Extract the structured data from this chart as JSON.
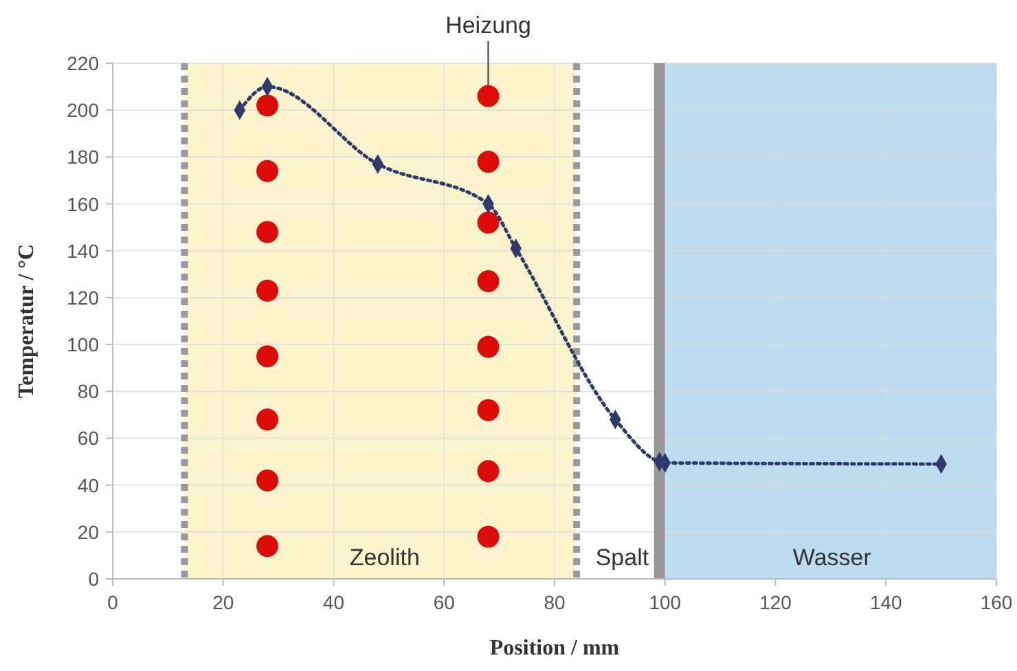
{
  "chart_data": {
    "type": "line",
    "xlabel": "Position / mm",
    "ylabel": "Temperatur / °C",
    "xlim": [
      0,
      160
    ],
    "ylim": [
      0,
      220
    ],
    "xticks": [
      0,
      20,
      40,
      60,
      80,
      100,
      120,
      140,
      160
    ],
    "yticks": [
      0,
      20,
      40,
      60,
      80,
      100,
      120,
      140,
      160,
      180,
      200,
      220
    ],
    "grid": true,
    "bands": [
      {
        "axis": "x",
        "from": 13,
        "to": 84,
        "label": "Zeolith",
        "color": "#fbf3cc"
      },
      {
        "axis": "x",
        "from": 84,
        "to": 99,
        "label": "Spalt",
        "color": "#ffffff"
      },
      {
        "axis": "x",
        "from": 99,
        "to": 160,
        "label": "Wasser",
        "color": "#bedcf0"
      }
    ],
    "ref_lines": [
      {
        "axis": "x",
        "value": 13,
        "color": "#999999",
        "line_style": "dashed"
      },
      {
        "axis": "x",
        "value": 84,
        "color": "#999999",
        "line_style": "dashed"
      },
      {
        "axis": "x",
        "value": 99,
        "color": "#999999",
        "line_style": "solid"
      }
    ],
    "annotations": [
      {
        "text": "Heizung",
        "x": 68,
        "y": 206
      }
    ],
    "series": [
      {
        "type": "scatter",
        "marker": "circle",
        "color": "#dd0a0a",
        "x": [
          28,
          28,
          28,
          28,
          28,
          28,
          28,
          28
        ],
        "values": [
          202,
          174,
          148,
          123,
          95,
          68,
          42,
          14
        ]
      },
      {
        "type": "scatter",
        "marker": "circle",
        "color": "#dd0a0a",
        "x": [
          68,
          68,
          68,
          68,
          68,
          68,
          68,
          68
        ],
        "values": [
          206,
          178,
          152,
          127,
          99,
          72,
          46,
          18
        ]
      },
      {
        "marker": "diamond",
        "line_style": "dotted",
        "color": "#2e3a6e",
        "x": [
          23,
          28,
          48,
          68,
          73,
          91,
          99,
          100,
          150
        ],
        "values": [
          200,
          210,
          177,
          160,
          141,
          68,
          50,
          49.5,
          49
        ]
      }
    ]
  }
}
